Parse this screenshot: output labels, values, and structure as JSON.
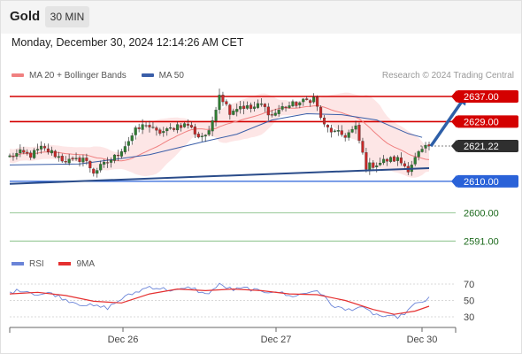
{
  "header": {
    "symbol": "Gold",
    "timeframe": "30 MIN",
    "datetime": "Monday, December 30, 2024 12:14:26 AM CET"
  },
  "legend": {
    "ma20_label": "MA 20 + Bollinger Bands",
    "ma50_label": "MA 50",
    "credit": "Research © 2024 Trading Central"
  },
  "rsi_legend": {
    "rsi_label": "RSI",
    "ma_label": "9MA"
  },
  "colors": {
    "up_candle": "#2e7d32",
    "down_candle": "#c62828",
    "resistance": "#d40000",
    "support": "#2a62d8",
    "trendline": "#2a4c8a",
    "ma20": "#f08080",
    "ma50": "#3a5ea8",
    "bollinger_fill": "#fde2e2",
    "target_green": "#76b776",
    "rsi_line": "#6a84d8",
    "rsi_ma": "#e53030",
    "forecast_arrow": "#2e5fa8"
  },
  "chart_data": [
    {
      "type": "candlestick",
      "title": "",
      "x_tick_labels": [
        "Dec 26",
        "Dec 27",
        "Dec 30"
      ],
      "levels": [
        {
          "value": 2637.0,
          "label": "2637.00",
          "kind": "resistance"
        },
        {
          "value": 2629.0,
          "label": "2629.00",
          "kind": "resistance"
        },
        {
          "value": 2621.22,
          "label": "2621.22",
          "kind": "last-price"
        },
        {
          "value": 2610.0,
          "label": "2610.00",
          "kind": "support"
        },
        {
          "value": 2600.0,
          "label": "2600.00",
          "kind": "target"
        },
        {
          "value": 2591.0,
          "label": "2591.00",
          "kind": "target"
        }
      ],
      "price_path": [
        [
          0,
          2617.8
        ],
        [
          3,
          2619.0
        ],
        [
          6,
          2618.3
        ],
        [
          9,
          2620.5
        ],
        [
          12,
          2619.2
        ],
        [
          15,
          2617.0
        ],
        [
          18,
          2616.2
        ],
        [
          21,
          2617.5
        ],
        [
          24,
          2613.0
        ],
        [
          27,
          2615.3
        ],
        [
          30,
          2617.7
        ],
        [
          33,
          2621.5
        ],
        [
          36,
          2626.0
        ],
        [
          39,
          2628.3
        ],
        [
          42,
          2625.5
        ],
        [
          45,
          2626.0
        ],
        [
          48,
          2627.9
        ],
        [
          51,
          2628.0
        ],
        [
          54,
          2624.3
        ],
        [
          57,
          2625.2
        ],
        [
          60,
          2638.0
        ],
        [
          63,
          2632.3
        ],
        [
          66,
          2634.0
        ],
        [
          69,
          2633.2
        ],
        [
          72,
          2634.4
        ],
        [
          75,
          2631.0
        ],
        [
          78,
          2633.5
        ],
        [
          81,
          2634.4
        ],
        [
          84,
          2635.3
        ],
        [
          87,
          2636.5
        ],
        [
          90,
          2627.5
        ],
        [
          93,
          2625.4
        ],
        [
          96,
          2624.6
        ],
        [
          99,
          2626.9
        ],
        [
          102,
          2614.7
        ],
        [
          105,
          2615.5
        ],
        [
          108,
          2616.8
        ],
        [
          111,
          2617.0
        ],
        [
          114,
          2614.0
        ],
        [
          117,
          2618.8
        ],
        [
          120,
          2621.2
        ]
      ],
      "ma50": [
        [
          0,
          2615.2
        ],
        [
          20,
          2615.5
        ],
        [
          40,
          2618.5
        ],
        [
          55,
          2622.5
        ],
        [
          65,
          2625.0
        ],
        [
          75,
          2629.5
        ],
        [
          85,
          2631.5
        ],
        [
          95,
          2631.2
        ],
        [
          105,
          2629.5
        ],
        [
          114,
          2625.2
        ],
        [
          118,
          2624.0
        ]
      ],
      "trendline": {
        "start": [
          0,
          2609.2
        ],
        "end": [
          120,
          2614.2
        ]
      },
      "forecast_arrow": {
        "start": [
          120,
          2621.2
        ],
        "end": [
          130,
          2636.4
        ]
      }
    },
    {
      "type": "line",
      "title": "RSI",
      "y_ticks": [
        70,
        50,
        30
      ],
      "series": [
        {
          "name": "RSI",
          "points": [
            [
              0,
              60
            ],
            [
              4,
              63
            ],
            [
              8,
              57
            ],
            [
              12,
              59
            ],
            [
              16,
              51
            ],
            [
              20,
              46
            ],
            [
              24,
              43
            ],
            [
              28,
              41
            ],
            [
              32,
              52
            ],
            [
              36,
              60
            ],
            [
              40,
              67
            ],
            [
              44,
              64
            ],
            [
              48,
              62
            ],
            [
              52,
              66
            ],
            [
              56,
              57
            ],
            [
              60,
              69
            ],
            [
              64,
              63
            ],
            [
              68,
              65
            ],
            [
              72,
              60
            ],
            [
              76,
              62
            ],
            [
              80,
              55
            ],
            [
              84,
              58
            ],
            [
              88,
              63
            ],
            [
              92,
              45
            ],
            [
              96,
              38
            ],
            [
              100,
              42
            ],
            [
              104,
              34
            ],
            [
              108,
              29
            ],
            [
              112,
              31
            ],
            [
              116,
              45
            ],
            [
              120,
              52
            ]
          ]
        },
        {
          "name": "9MA",
          "points": [
            [
              0,
              58
            ],
            [
              8,
              60
            ],
            [
              16,
              56
            ],
            [
              24,
              49
            ],
            [
              32,
              47
            ],
            [
              40,
              58
            ],
            [
              48,
              64
            ],
            [
              56,
              62
            ],
            [
              64,
              64
            ],
            [
              72,
              62
            ],
            [
              80,
              58
            ],
            [
              88,
              57
            ],
            [
              96,
              50
            ],
            [
              104,
              39
            ],
            [
              110,
              33
            ],
            [
              116,
              37
            ],
            [
              120,
              43
            ]
          ]
        }
      ]
    }
  ]
}
